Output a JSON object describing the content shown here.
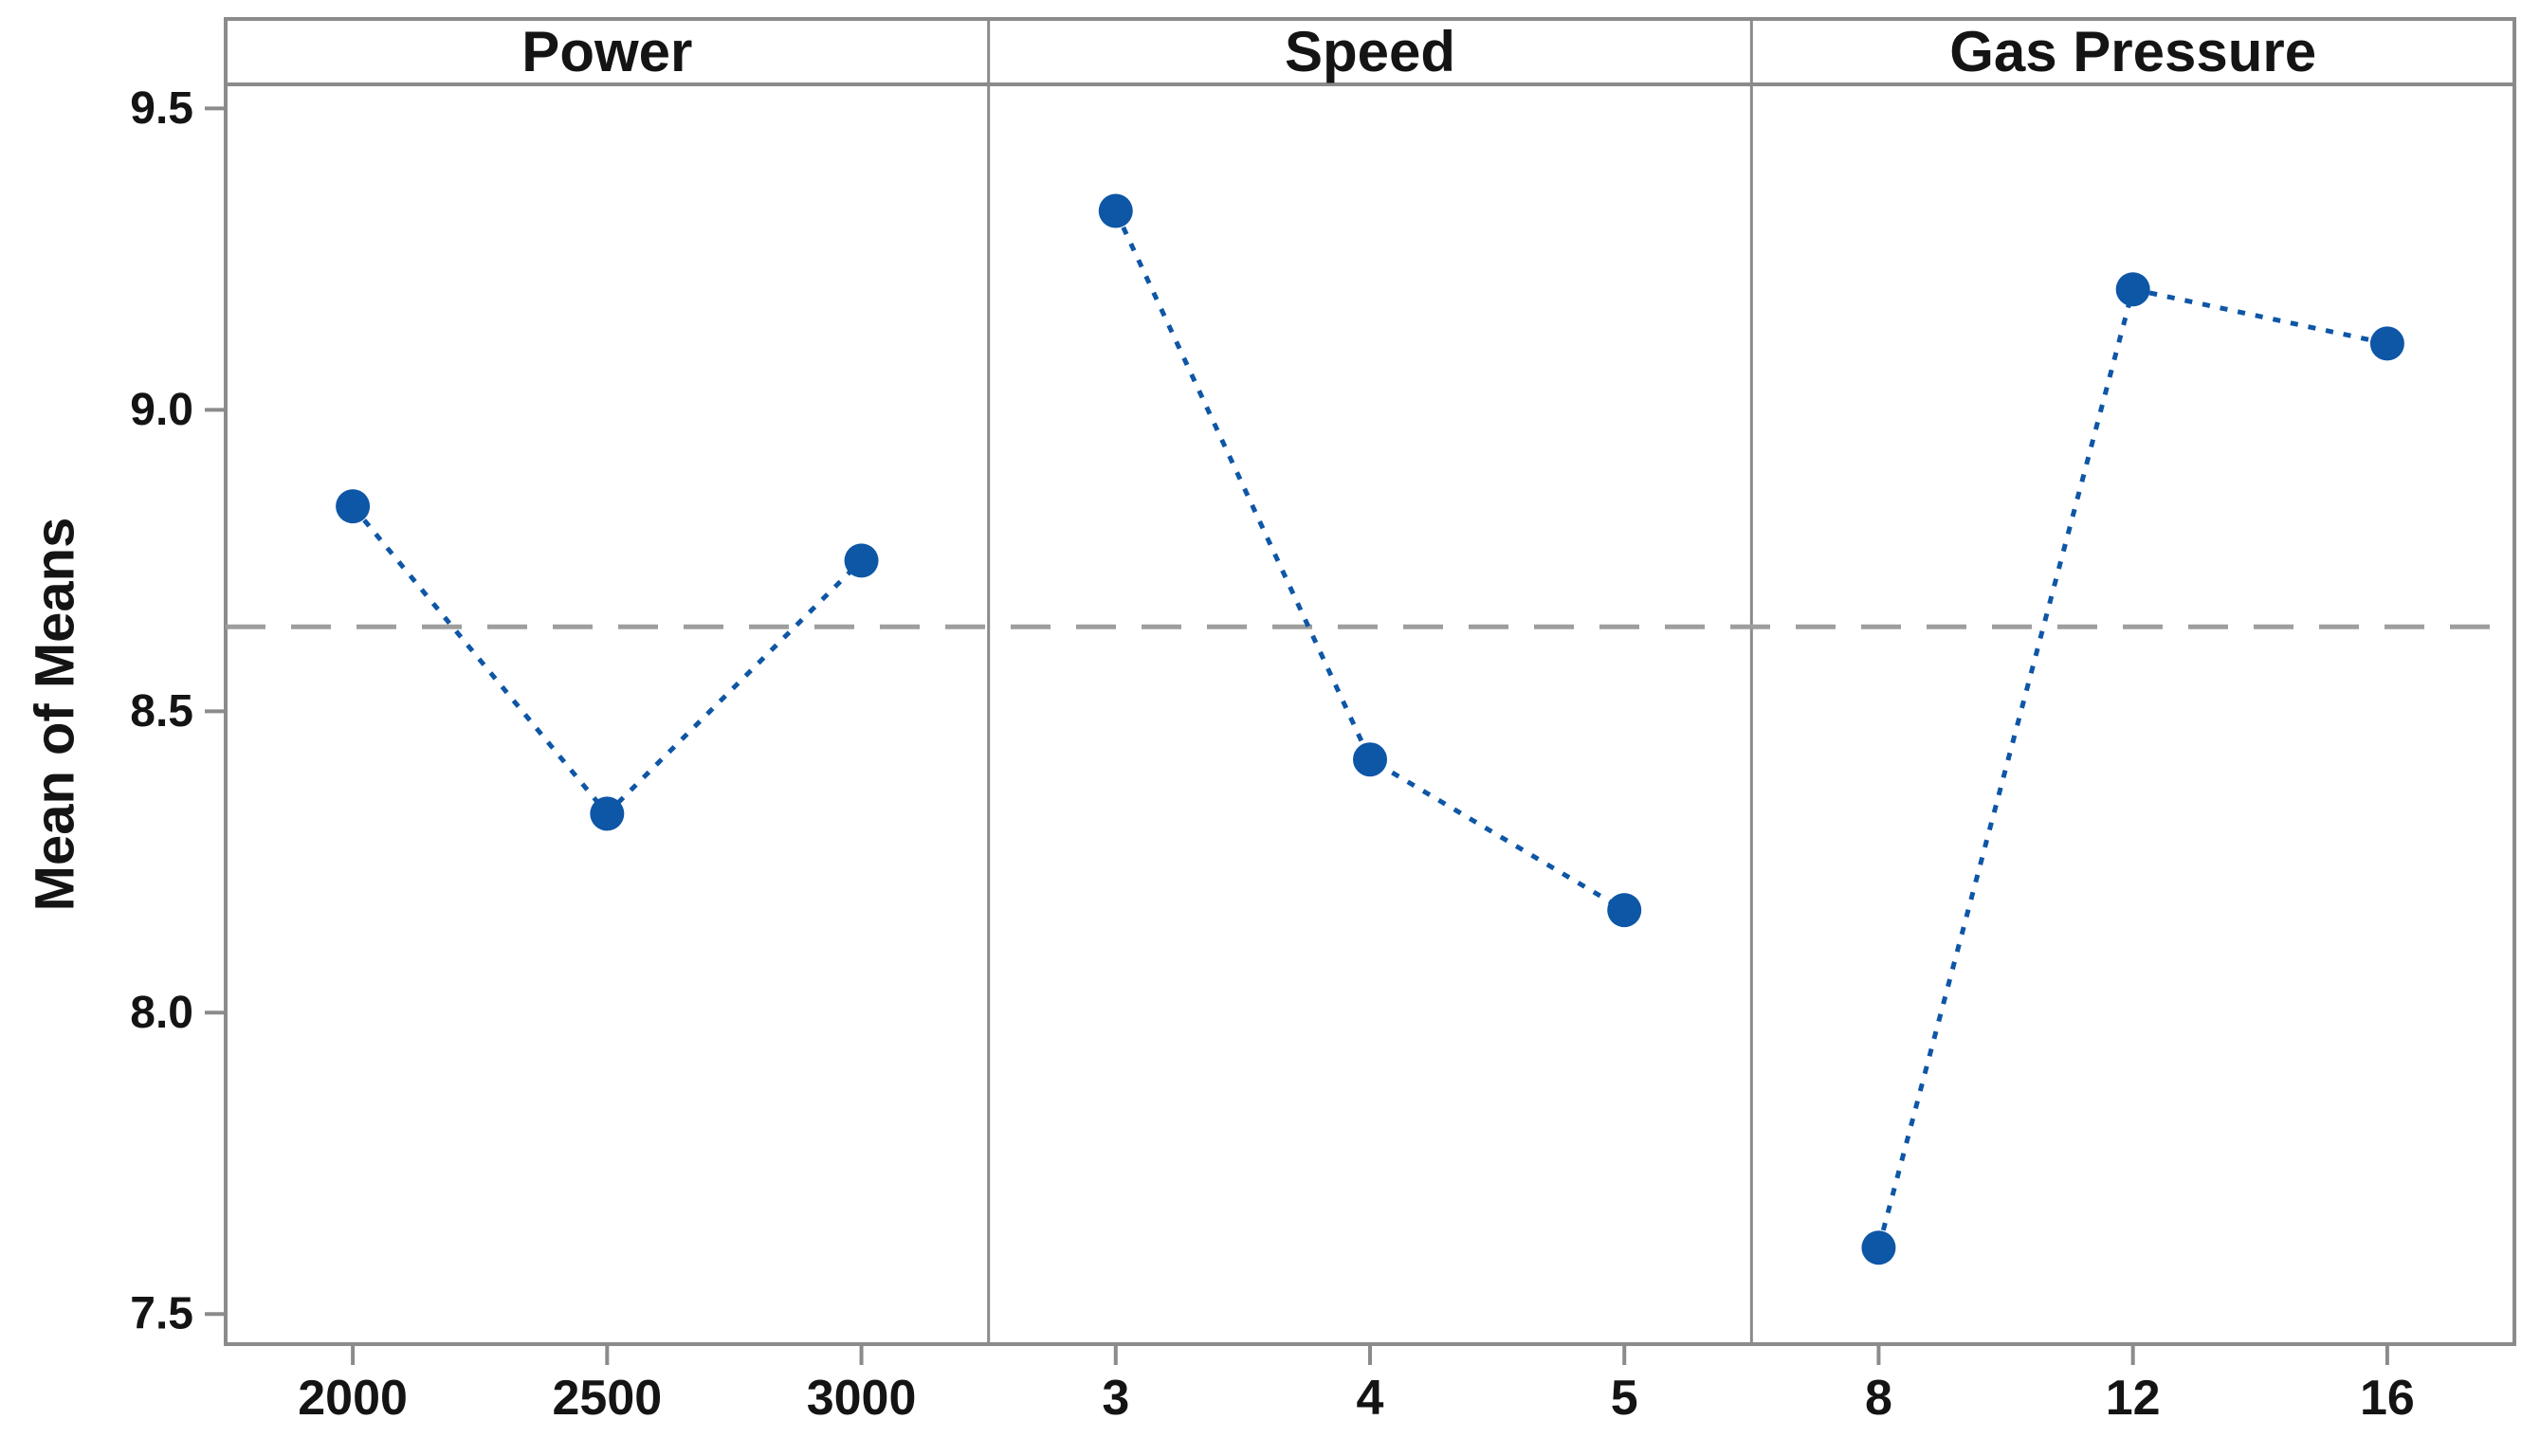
{
  "figure": {
    "background": "#ffffff",
    "frame_color": "#8b8b8b",
    "tick_color": "#8b8b8b",
    "series_color": "#0e56a6",
    "reference_line_color": "#9e9e9e",
    "text_color": "#141414",
    "y_axis_title": "Mean of Means"
  },
  "chart_data": {
    "type": "line",
    "subtype": "main-effects-plot",
    "title": "",
    "ylabel": "Mean of Means",
    "xlabel": "",
    "ylim": [
      7.45,
      9.54
    ],
    "yticks": [
      9.5,
      9.0,
      8.5,
      8.0,
      7.5
    ],
    "ytick_labels": [
      "9.5",
      "9.0",
      "8.5",
      "8.0",
      "7.5"
    ],
    "reference_line": 8.64,
    "grid": false,
    "legend": null,
    "panels": [
      {
        "label": "Power",
        "categories": [
          "2000",
          "2500",
          "3000"
        ],
        "values": [
          8.84,
          8.33,
          8.75
        ]
      },
      {
        "label": "Speed",
        "categories": [
          "3",
          "4",
          "5"
        ],
        "values": [
          9.33,
          8.42,
          8.17
        ]
      },
      {
        "label": "Gas Pressure",
        "categories": [
          "8",
          "12",
          "16"
        ],
        "values": [
          7.61,
          9.2,
          9.11
        ]
      }
    ]
  }
}
